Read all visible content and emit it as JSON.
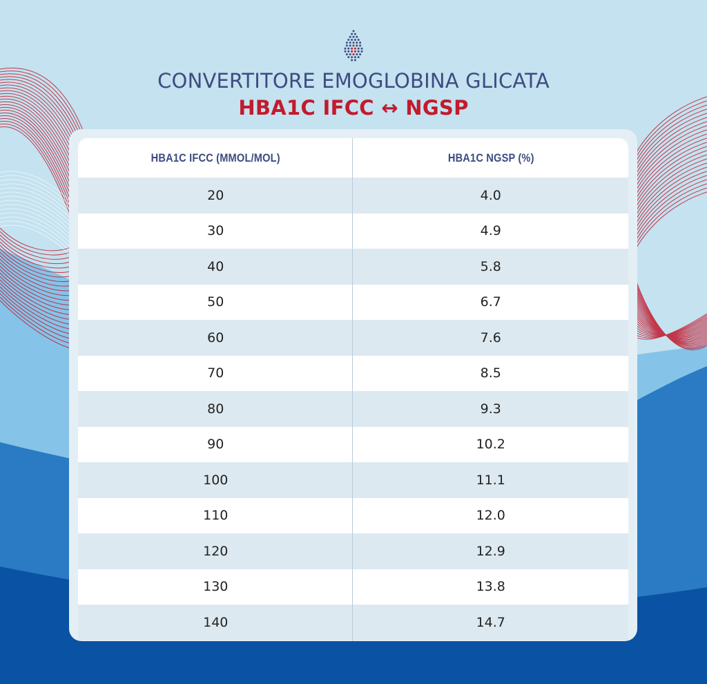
{
  "header": {
    "title": "CONVERTITORE EMOGLOBINA GLICATA",
    "subtitle": "HBA1C IFCC ↔ NGSP"
  },
  "logo": {
    "icon": "droplet-dots-icon",
    "color_dots": "#3d4b82",
    "color_accent": "#c21a2e"
  },
  "table": {
    "headers": [
      "HBA1C IFCC (MMOL/MOL)",
      "HBA1C NGSP (%)"
    ],
    "rows": [
      [
        "20",
        "4.0"
      ],
      [
        "30",
        "4.9"
      ],
      [
        "40",
        "5.8"
      ],
      [
        "50",
        "6.7"
      ],
      [
        "60",
        "7.6"
      ],
      [
        "70",
        "8.5"
      ],
      [
        "80",
        "9.3"
      ],
      [
        "90",
        "10.2"
      ],
      [
        "100",
        "11.1"
      ],
      [
        "110",
        "12.0"
      ],
      [
        "120",
        "12.9"
      ],
      [
        "130",
        "13.8"
      ],
      [
        "140",
        "14.7"
      ]
    ]
  },
  "colors": {
    "title": "#3d4b82",
    "subtitle": "#c21a2e",
    "background_light": "#c4e2ef",
    "wave_mid": "#7fc0e6",
    "wave_blue": "#1e6fb9",
    "wave_dark": "#0a52a3",
    "lines_red": "#c21a2e"
  }
}
